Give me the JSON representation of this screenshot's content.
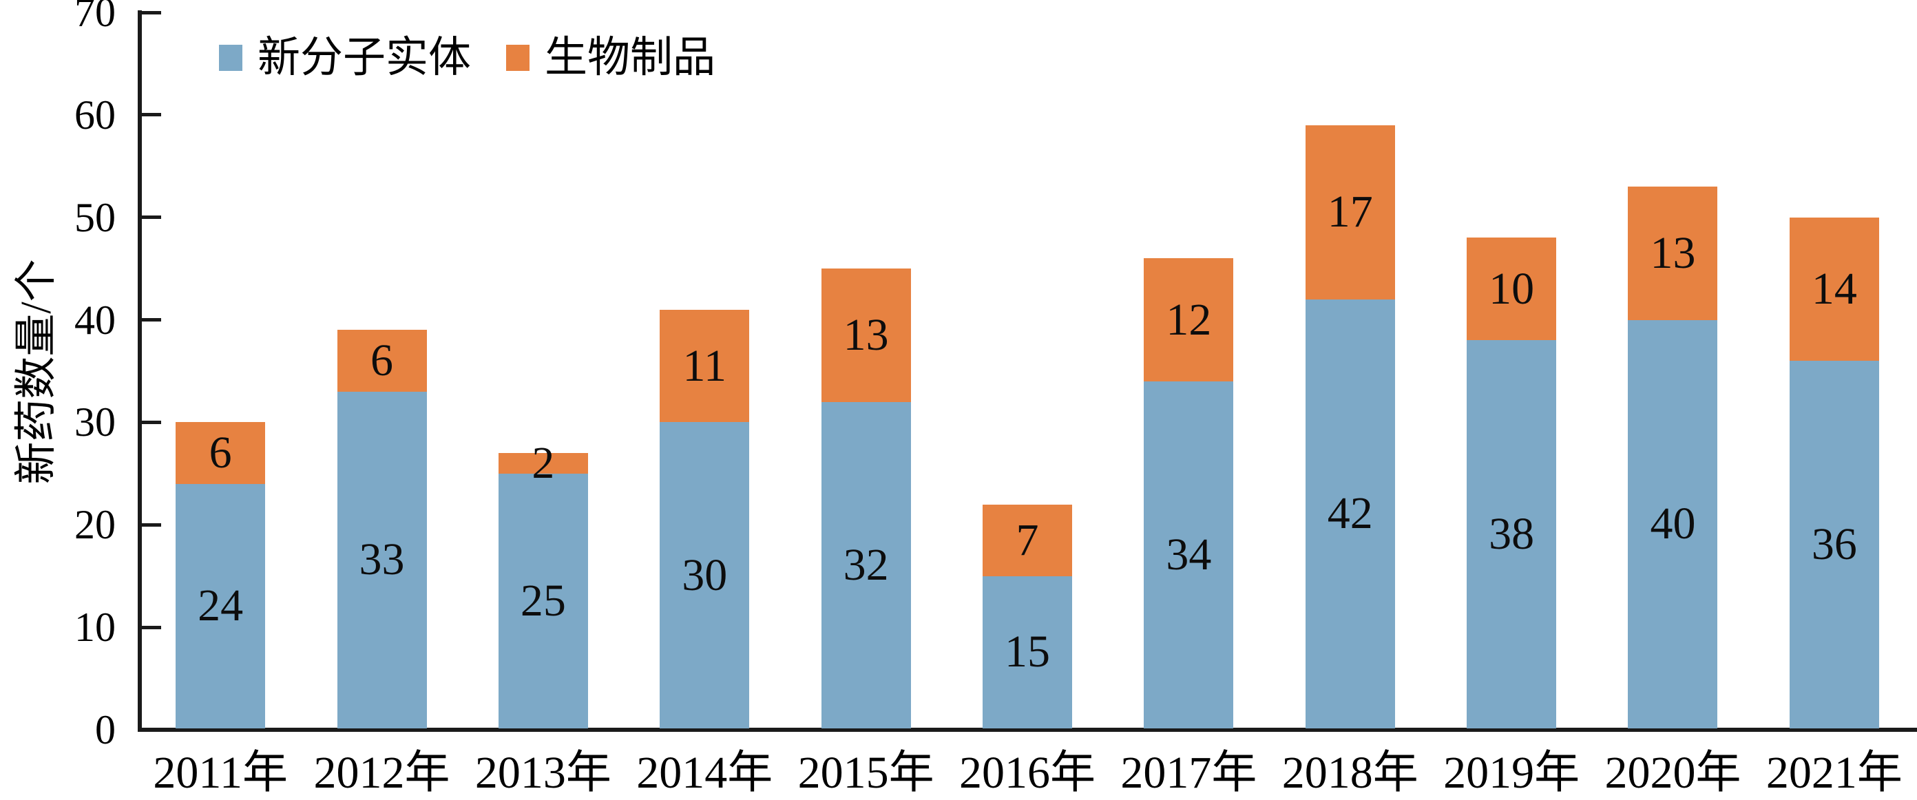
{
  "chart_data": {
    "type": "bar",
    "stacked": true,
    "title": "",
    "xlabel": "",
    "ylabel": "新药数量/个",
    "ylim": [
      0,
      70
    ],
    "yticks": [
      0,
      10,
      20,
      30,
      40,
      50,
      60,
      70
    ],
    "grid": false,
    "legend_position": "top-left",
    "categories": [
      "2011年",
      "2012年",
      "2013年",
      "2014年",
      "2015年",
      "2016年",
      "2017年",
      "2018年",
      "2019年",
      "2020年",
      "2021年"
    ],
    "series": [
      {
        "name": "新分子实体",
        "color": "#7DA9C7",
        "values": [
          24,
          33,
          25,
          30,
          32,
          15,
          34,
          42,
          38,
          40,
          36
        ]
      },
      {
        "name": "生物制品",
        "color": "#E78241",
        "values": [
          6,
          6,
          2,
          11,
          13,
          7,
          12,
          17,
          10,
          13,
          14
        ]
      }
    ],
    "totals": [
      30,
      39,
      27,
      41,
      45,
      22,
      46,
      59,
      48,
      53,
      50
    ],
    "colors": {
      "axis": "#1a1a1a",
      "text": "#000000",
      "background": "#ffffff"
    }
  }
}
